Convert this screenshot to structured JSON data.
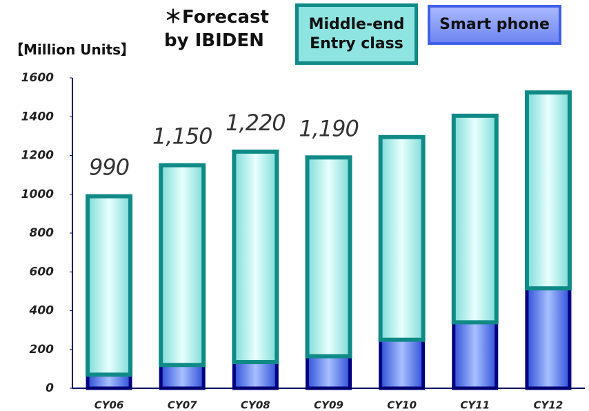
{
  "chart_data": {
    "type": "stacked_bar",
    "y_label": "【Million Units】",
    "note_lines": [
      "＊Forecast",
      "by IBIDEN"
    ],
    "categories": [
      "CY06",
      "CY07",
      "CY08",
      "CY09",
      "CY10",
      "CY11",
      "CY12"
    ],
    "series": [
      {
        "name": "Smart phone",
        "color": "#6f8cf5",
        "values": [
          70,
          120,
          135,
          165,
          250,
          340,
          515
        ]
      },
      {
        "name": "Middle-end Entry class",
        "color": "#9ee8e6",
        "values": [
          920,
          1030,
          1085,
          1025,
          1045,
          1065,
          1010
        ]
      }
    ],
    "annotations": [
      {
        "x": "CY06",
        "value": 990,
        "label": "990"
      },
      {
        "x": "CY07",
        "value": 1150,
        "label": "1,150"
      },
      {
        "x": "CY08",
        "value": 1220,
        "label": "1,220"
      },
      {
        "x": "CY09",
        "value": 1190,
        "label": "1,190"
      }
    ],
    "ylim": [
      0,
      1600
    ],
    "yticks": [
      0,
      200,
      400,
      600,
      800,
      1000,
      1200,
      1400,
      1600
    ]
  }
}
